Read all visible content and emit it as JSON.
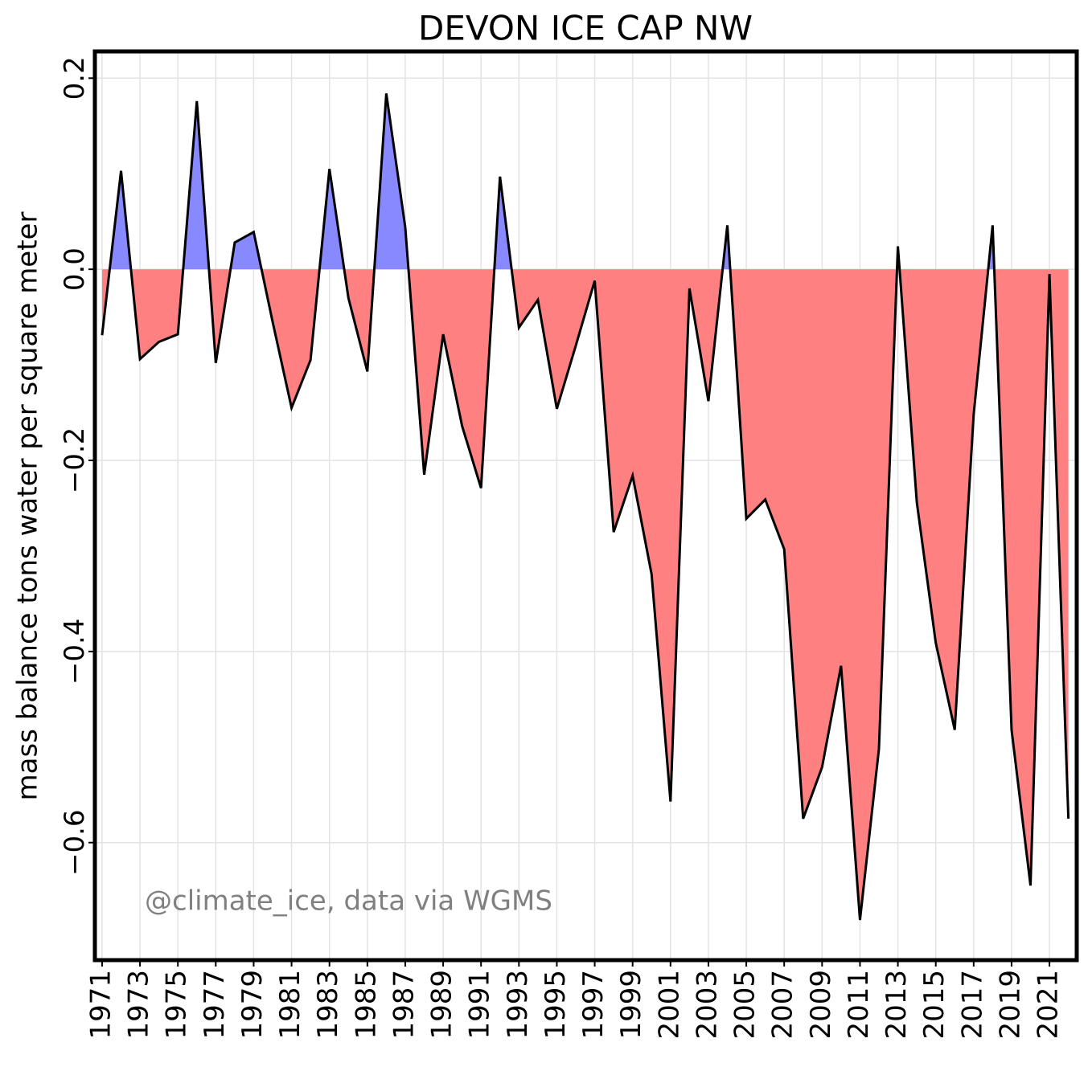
{
  "chart_data": {
    "type": "area",
    "title": "DEVON ICE CAP NW",
    "ylabel": "mass balance tons water per square meter",
    "annotation": "@climate_ice, data via WGMS",
    "x": [
      1971,
      1972,
      1973,
      1974,
      1975,
      1976,
      1977,
      1978,
      1979,
      1980,
      1981,
      1982,
      1983,
      1984,
      1985,
      1986,
      1987,
      1988,
      1989,
      1990,
      1991,
      1992,
      1993,
      1994,
      1995,
      1996,
      1997,
      1998,
      1999,
      2000,
      2001,
      2002,
      2003,
      2004,
      2005,
      2006,
      2007,
      2008,
      2009,
      2010,
      2011,
      2012,
      2013,
      2014,
      2015,
      2016,
      2017,
      2018,
      2019,
      2020,
      2021,
      2022
    ],
    "values": [
      -0.069,
      0.103,
      -0.094,
      -0.076,
      -0.068,
      0.176,
      -0.098,
      0.028,
      0.039,
      -0.055,
      -0.145,
      -0.095,
      0.105,
      -0.03,
      -0.107,
      0.184,
      0.044,
      -0.215,
      -0.068,
      -0.164,
      -0.229,
      0.097,
      -0.061,
      -0.032,
      -0.146,
      -0.08,
      -0.012,
      -0.275,
      -0.216,
      -0.319,
      -0.557,
      -0.02,
      -0.138,
      0.046,
      -0.261,
      -0.241,
      -0.293,
      -0.575,
      -0.521,
      -0.415,
      -0.681,
      -0.502,
      0.024,
      -0.244,
      -0.391,
      -0.482,
      -0.152,
      0.046,
      -0.482,
      -0.645,
      -0.005,
      -0.575
    ],
    "line_color": "#000000",
    "positive_color": "#8888ff",
    "negative_color": "#ff8080",
    "xlim": [
      1970.62,
      2022.44
    ],
    "ylim": [
      -0.723,
      0.228
    ],
    "xticks": [
      1971,
      1973,
      1975,
      1977,
      1979,
      1981,
      1983,
      1985,
      1987,
      1989,
      1991,
      1993,
      1995,
      1997,
      1999,
      2001,
      2003,
      2005,
      2007,
      2009,
      2011,
      2013,
      2015,
      2017,
      2019,
      2021
    ],
    "yticks": [
      {
        "value": -0.6,
        "label": "−0.6"
      },
      {
        "value": -0.4,
        "label": "−0.4"
      },
      {
        "value": -0.2,
        "label": "−0.2"
      },
      {
        "value": 0,
        "label": "0.0"
      },
      {
        "value": 0.2,
        "label": "0.2"
      }
    ],
    "grid": true
  }
}
